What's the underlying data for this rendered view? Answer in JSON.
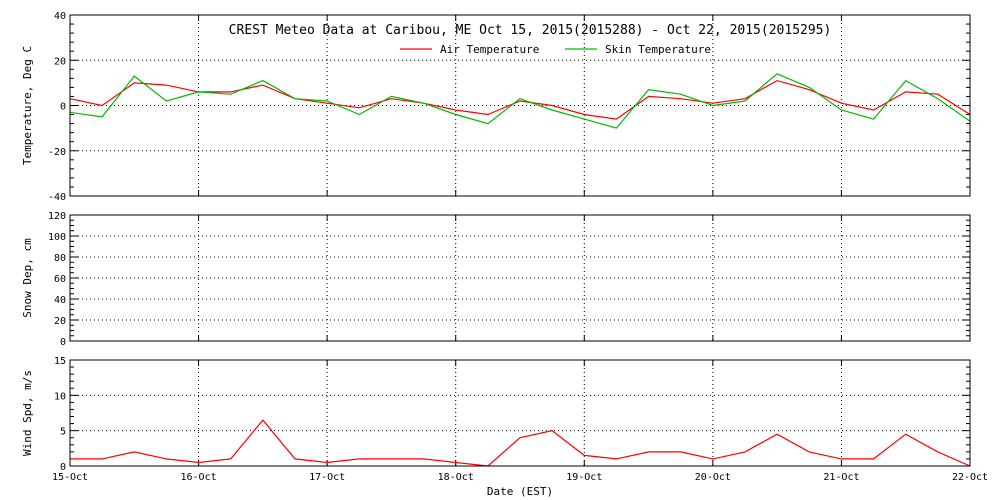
{
  "chart_data": [
    {
      "type": "line",
      "title": "CREST Meteo Data at Caribou, ME   Oct 15, 2015(2015288) - Oct 22, 2015(2015295)",
      "ylabel": "Temperature, Deg C",
      "xlabel": "",
      "ylim": [
        -40,
        40
      ],
      "yticks": [
        -40,
        -20,
        0,
        20,
        40
      ],
      "xlim": [
        "2015-10-15",
        "2015-10-22"
      ],
      "x_unit": "day",
      "grid": true,
      "legend": "top-right",
      "series": [
        {
          "name": "Air Temperature",
          "color": "#ff0000",
          "x": [
            "2015-10-15 00:00",
            "2015-10-15 06:00",
            "2015-10-15 12:00",
            "2015-10-15 18:00",
            "2015-10-16 00:00",
            "2015-10-16 06:00",
            "2015-10-16 12:00",
            "2015-10-16 18:00",
            "2015-10-17 00:00",
            "2015-10-17 06:00",
            "2015-10-17 12:00",
            "2015-10-17 18:00",
            "2015-10-18 00:00",
            "2015-10-18 06:00",
            "2015-10-18 12:00",
            "2015-10-18 18:00",
            "2015-10-19 00:00",
            "2015-10-19 06:00",
            "2015-10-19 12:00",
            "2015-10-19 18:00",
            "2015-10-20 00:00",
            "2015-10-20 06:00",
            "2015-10-20 12:00",
            "2015-10-20 18:00",
            "2015-10-21 00:00",
            "2015-10-21 06:00",
            "2015-10-21 12:00",
            "2015-10-21 18:00",
            "2015-10-22 00:00"
          ],
          "values": [
            3,
            0,
            10,
            9,
            6,
            6,
            9,
            3,
            1,
            -1,
            3,
            1,
            -2,
            -4,
            2,
            0,
            -4,
            -6,
            4,
            3,
            1,
            3,
            11,
            7,
            1,
            -2,
            6,
            5,
            -4
          ]
        },
        {
          "name": "Skin Temperature",
          "color": "#00bb00",
          "x": [
            "2015-10-15 00:00",
            "2015-10-15 06:00",
            "2015-10-15 12:00",
            "2015-10-15 18:00",
            "2015-10-16 00:00",
            "2015-10-16 06:00",
            "2015-10-16 12:00",
            "2015-10-16 18:00",
            "2015-10-17 00:00",
            "2015-10-17 06:00",
            "2015-10-17 12:00",
            "2015-10-17 18:00",
            "2015-10-18 00:00",
            "2015-10-18 06:00",
            "2015-10-18 12:00",
            "2015-10-18 18:00",
            "2015-10-19 00:00",
            "2015-10-19 06:00",
            "2015-10-19 12:00",
            "2015-10-19 18:00",
            "2015-10-20 00:00",
            "2015-10-20 06:00",
            "2015-10-20 12:00",
            "2015-10-20 18:00",
            "2015-10-21 00:00",
            "2015-10-21 06:00",
            "2015-10-21 12:00",
            "2015-10-21 18:00",
            "2015-10-22 00:00"
          ],
          "values": [
            -3,
            -5,
            13,
            2,
            6,
            5,
            11,
            3,
            2,
            -4,
            4,
            1,
            -4,
            -8,
            3,
            -2,
            -6,
            -10,
            7,
            5,
            0,
            2,
            14,
            8,
            -2,
            -6,
            11,
            3,
            -7
          ]
        }
      ]
    },
    {
      "type": "line",
      "title": "",
      "ylabel": "Snow Dep, cm",
      "xlabel": "",
      "ylim": [
        0,
        120
      ],
      "yticks": [
        0,
        20,
        40,
        60,
        80,
        100,
        120
      ],
      "xlim": [
        "2015-10-15",
        "2015-10-22"
      ],
      "grid": true,
      "series": []
    },
    {
      "type": "line",
      "title": "",
      "ylabel": "Wind Spd, m/s",
      "xlabel": "Date (EST)",
      "ylim": [
        0,
        15
      ],
      "yticks": [
        0,
        5,
        10,
        15
      ],
      "xlim": [
        "2015-10-15",
        "2015-10-22"
      ],
      "xticks": [
        "15-Oct",
        "16-Oct",
        "17-Oct",
        "18-Oct",
        "19-Oct",
        "20-Oct",
        "21-Oct",
        "22-Oct"
      ],
      "grid": true,
      "series": [
        {
          "color": "#ff0000",
          "x": [
            "2015-10-15 00:00",
            "2015-10-15 06:00",
            "2015-10-15 12:00",
            "2015-10-15 18:00",
            "2015-10-16 00:00",
            "2015-10-16 06:00",
            "2015-10-16 12:00",
            "2015-10-16 18:00",
            "2015-10-17 00:00",
            "2015-10-17 06:00",
            "2015-10-17 12:00",
            "2015-10-17 18:00",
            "2015-10-18 00:00",
            "2015-10-18 06:00",
            "2015-10-18 12:00",
            "2015-10-18 18:00",
            "2015-10-19 00:00",
            "2015-10-19 06:00",
            "2015-10-19 12:00",
            "2015-10-19 18:00",
            "2015-10-20 00:00",
            "2015-10-20 06:00",
            "2015-10-20 12:00",
            "2015-10-20 18:00",
            "2015-10-21 00:00",
            "2015-10-21 06:00",
            "2015-10-21 12:00",
            "2015-10-21 18:00",
            "2015-10-22 00:00"
          ],
          "values": [
            1,
            1,
            2,
            1,
            0.5,
            1,
            6.5,
            1,
            0.5,
            1,
            1,
            1,
            0.5,
            0,
            4,
            5,
            1.5,
            1,
            2,
            2,
            1,
            2,
            4.5,
            2,
            1,
            1,
            4.5,
            2,
            0
          ]
        }
      ]
    }
  ]
}
